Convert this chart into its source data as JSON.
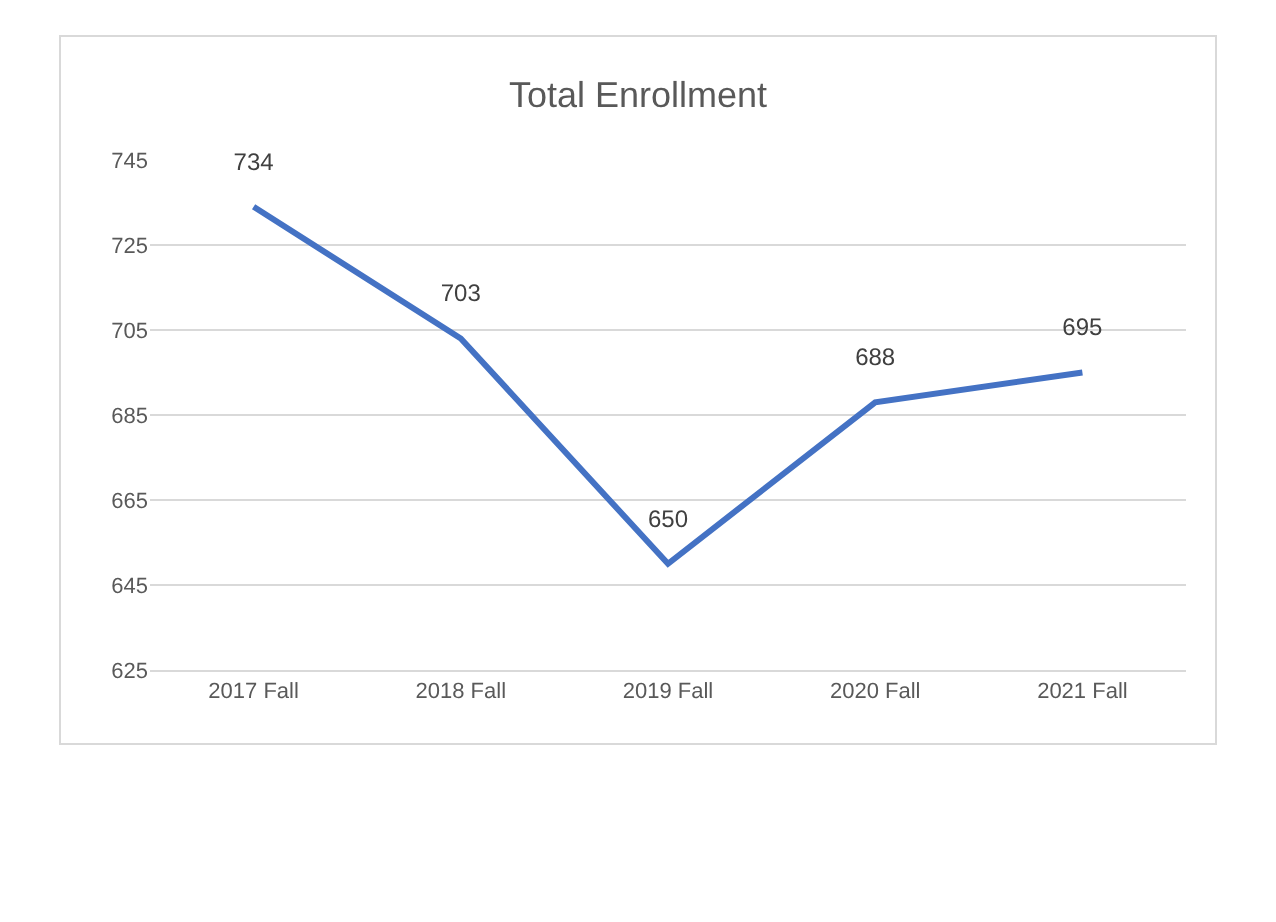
{
  "chart_data": {
    "type": "line",
    "title": "Total Enrollment",
    "categories": [
      "2017 Fall",
      "2018 Fall",
      "2019 Fall",
      "2020 Fall",
      "2021 Fall"
    ],
    "series": [
      {
        "color": "#4472c4",
        "values": [
          734,
          703,
          650,
          688,
          695
        ]
      }
    ],
    "ylim": [
      625,
      745
    ],
    "yticks": [
      625,
      645,
      665,
      685,
      705,
      725,
      745
    ],
    "grid": "y",
    "data_labels": true,
    "marker": "none",
    "line_style": "solid"
  }
}
